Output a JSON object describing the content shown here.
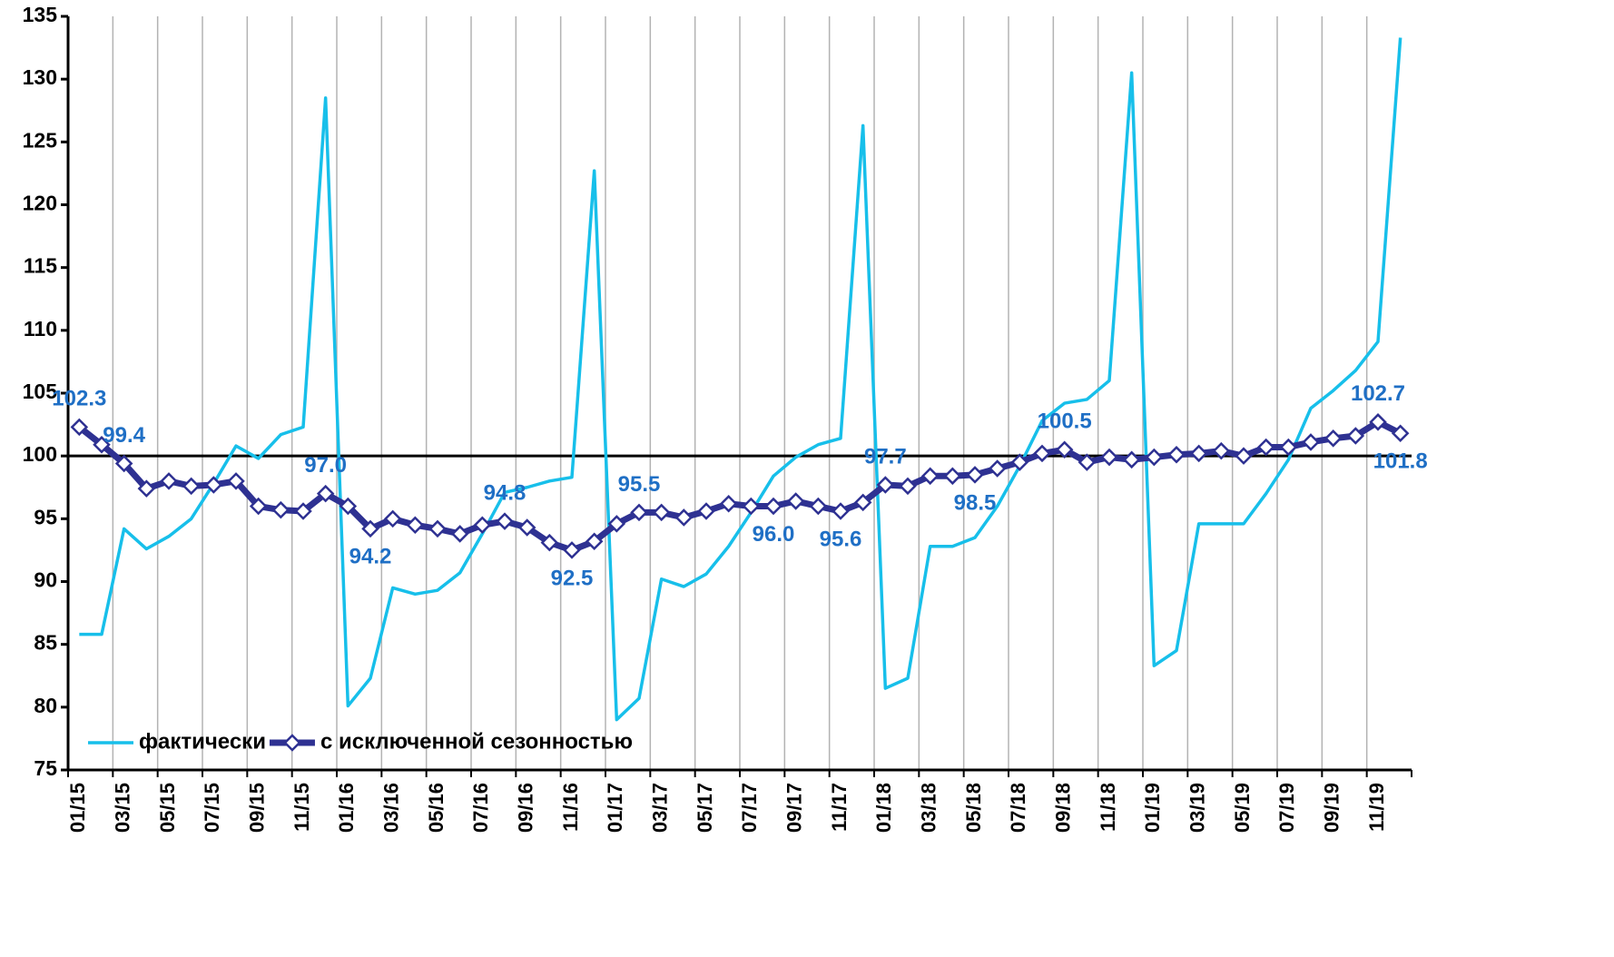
{
  "chart_data": {
    "type": "line",
    "categories": [
      "01/15",
      null,
      "03/15",
      null,
      "05/15",
      null,
      "07/15",
      null,
      "09/15",
      null,
      "11/15",
      null,
      "01/16",
      null,
      "03/16",
      null,
      "05/16",
      null,
      "07/16",
      null,
      "09/16",
      null,
      "11/16",
      null,
      "01/17",
      null,
      "03/17",
      null,
      "05/17",
      null,
      "07/17",
      null,
      "09/17",
      null,
      "11/17",
      null,
      "01/18",
      null,
      "03/18",
      null,
      "05/18",
      null,
      "07/18",
      null,
      "09/18",
      null,
      "11/18",
      null,
      "01/19",
      null,
      "03/19",
      null,
      "05/19",
      null,
      "07/19",
      null,
      "09/19",
      null,
      "11/19",
      null
    ],
    "series": [
      {
        "name": "фактически",
        "color": "#17bfea",
        "values": [
          85.8,
          85.8,
          94.2,
          92.6,
          93.6,
          95.0,
          97.8,
          100.8,
          99.8,
          101.7,
          102.3,
          128.5,
          80.1,
          82.3,
          89.5,
          89.0,
          89.3,
          90.7,
          93.8,
          97.1,
          97.5,
          98.0,
          98.3,
          122.7,
          79.0,
          80.7,
          90.2,
          89.6,
          90.6,
          92.8,
          95.5,
          98.4,
          99.9,
          100.9,
          101.4,
          126.3,
          81.5,
          82.3,
          92.8,
          92.8,
          93.5,
          96.0,
          99.2,
          102.8,
          104.2,
          104.5,
          106.0,
          130.5,
          83.3,
          84.5,
          94.6,
          94.6,
          94.6,
          97.0,
          99.7,
          103.8,
          105.2,
          106.8,
          109.1,
          133.3
        ]
      },
      {
        "name": "с исключенной сезонностью",
        "color": "#2e3192",
        "marker": "diamond",
        "label_color": "#1f6fc5",
        "values": [
          102.3,
          100.9,
          99.4,
          97.4,
          98.0,
          97.6,
          97.7,
          98.0,
          96.0,
          95.7,
          95.6,
          97.0,
          96.0,
          94.2,
          95.0,
          94.5,
          94.2,
          93.8,
          94.5,
          94.8,
          94.3,
          93.1,
          92.5,
          93.2,
          94.6,
          95.5,
          95.5,
          95.1,
          95.6,
          96.2,
          96.0,
          96.0,
          96.4,
          96.0,
          95.6,
          96.3,
          97.7,
          97.6,
          98.4,
          98.4,
          98.5,
          99.0,
          99.5,
          100.2,
          100.5,
          99.5,
          99.9,
          99.7,
          99.9,
          100.1,
          100.2,
          100.4,
          100.0,
          100.7,
          100.7,
          101.1,
          101.4,
          101.6,
          102.7,
          101.8
        ],
        "value_labels": [
          "102.3",
          null,
          "99.4",
          null,
          null,
          null,
          null,
          null,
          null,
          null,
          null,
          "97.0",
          null,
          "94.2",
          null,
          null,
          null,
          null,
          null,
          "94.8",
          null,
          null,
          "92.5",
          null,
          null,
          "95.5",
          null,
          null,
          null,
          null,
          null,
          "96.0",
          null,
          null,
          "95.6",
          null,
          "97.7",
          null,
          null,
          null,
          "98.5",
          null,
          null,
          null,
          "100.5",
          null,
          null,
          null,
          null,
          null,
          null,
          null,
          null,
          null,
          null,
          null,
          null,
          null,
          "102.7",
          "101.8"
        ]
      }
    ],
    "ylim": [
      75,
      135
    ],
    "yticks": [
      75,
      80,
      85,
      90,
      95,
      100,
      105,
      110,
      115,
      120,
      125,
      130,
      135
    ],
    "reference_line": 100,
    "legend": "lower left",
    "grid": "vertical"
  }
}
